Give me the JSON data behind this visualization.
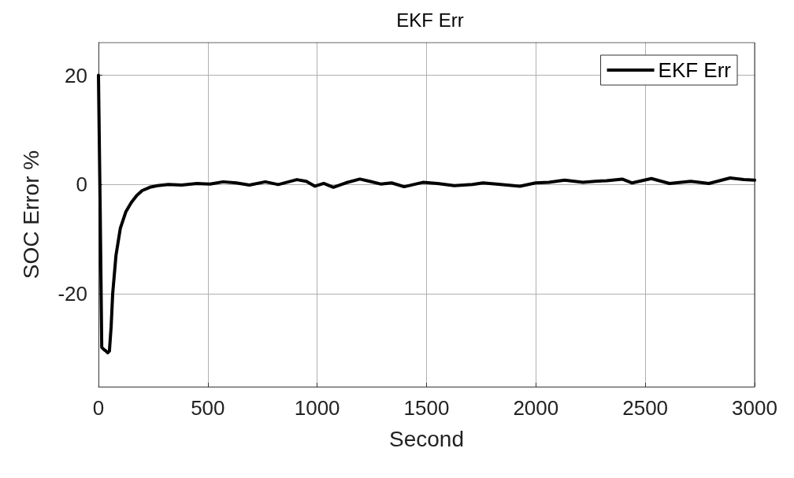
{
  "chart_data": {
    "type": "line",
    "title": "EKF Err",
    "xlabel": "Second",
    "ylabel": "SOC Error %",
    "series": [
      {
        "name": "EKF Err",
        "color": "#000000",
        "x": [
          0,
          8,
          15,
          25,
          35,
          42,
          50,
          58,
          65,
          80,
          100,
          125,
          150,
          175,
          200,
          235,
          270,
          320,
          380,
          450,
          510,
          570,
          630,
          690,
          763,
          822,
          907,
          950,
          990,
          1030,
          1074,
          1130,
          1195,
          1240,
          1290,
          1340,
          1398,
          1440,
          1483,
          1550,
          1627,
          1710,
          1758,
          1840,
          1927,
          1999,
          2060,
          2131,
          2215,
          2270,
          2323,
          2395,
          2440,
          2528,
          2611,
          2708,
          2791,
          2888,
          2950,
          3000
        ],
        "values": [
          20,
          -5,
          -29.8,
          -30.2,
          -30.5,
          -30.8,
          -30.5,
          -26,
          -20,
          -13,
          -8,
          -5,
          -3.3,
          -2,
          -1.1,
          -0.5,
          -0.2,
          0.0,
          -0.1,
          0.2,
          0.1,
          0.5,
          0.3,
          -0.1,
          0.5,
          0.0,
          0.9,
          0.6,
          -0.3,
          0.2,
          -0.5,
          0.3,
          1.0,
          0.6,
          0.1,
          0.3,
          -0.4,
          0.0,
          0.4,
          0.2,
          -0.2,
          0.0,
          0.3,
          0.0,
          -0.3,
          0.3,
          0.4,
          0.8,
          0.4,
          0.6,
          0.7,
          1.0,
          0.3,
          1.1,
          0.2,
          0.6,
          0.2,
          1.2,
          0.9,
          0.8
        ]
      }
    ],
    "xlim": [
      0,
      3000
    ],
    "xticks": [
      0,
      500,
      1000,
      1500,
      2000,
      2500,
      3000
    ],
    "ylim": [
      -37,
      26
    ],
    "yticks": [
      -20,
      0,
      20
    ],
    "grid": true,
    "legend": "top right",
    "marker": "none",
    "line_style": "solid"
  }
}
